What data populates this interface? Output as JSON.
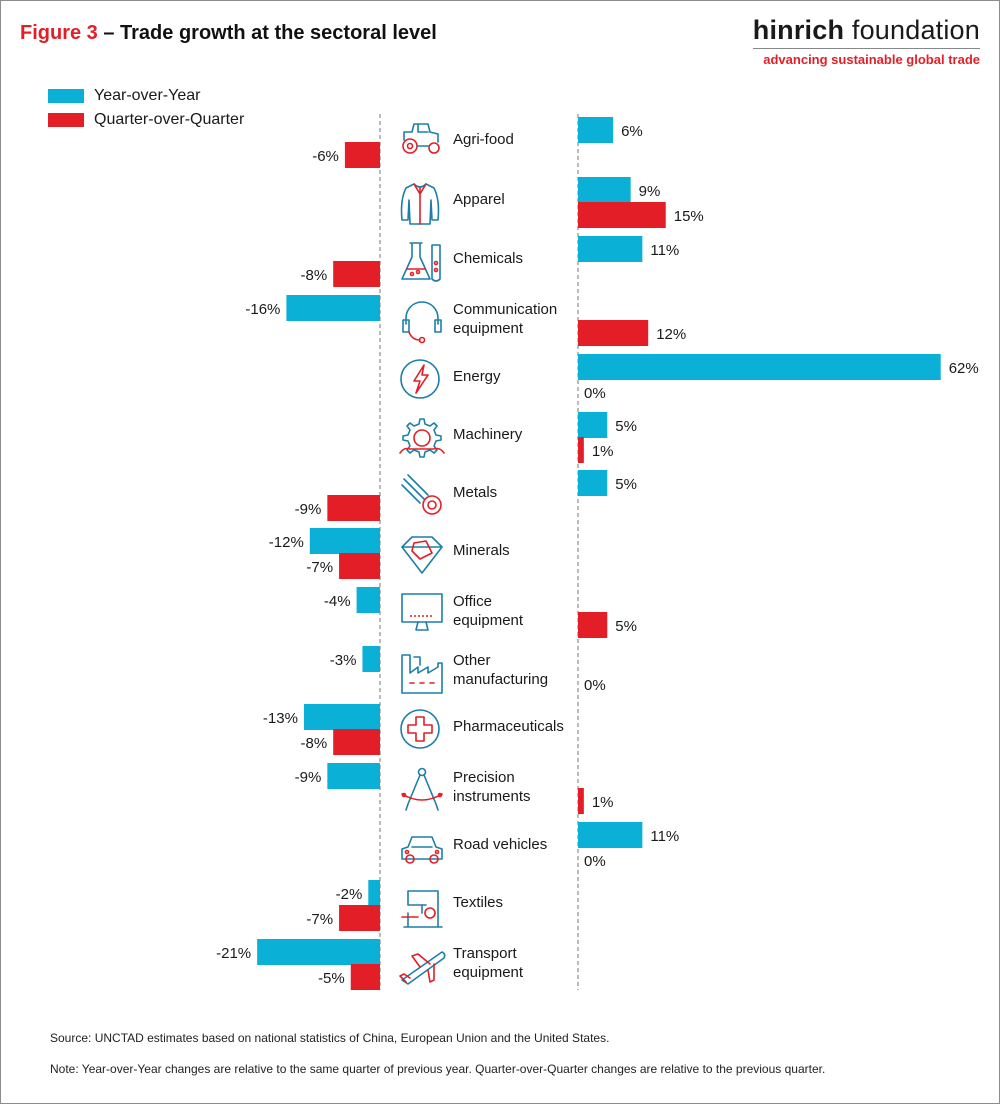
{
  "header": {
    "figure_label": "Figure 3",
    "title_text": "– Trade growth at the sectoral level",
    "brand_name_bold": "hinrich",
    "brand_name_rest": " foundation",
    "brand_tagline": "advancing sustainable global trade"
  },
  "colors": {
    "yoy": "#0bb0d6",
    "qoq": "#e31e26",
    "icon": "#e31e26",
    "icon_secondary": "#1d7fa8"
  },
  "chart_data": {
    "type": "bar",
    "orientation": "horizontal",
    "series": [
      {
        "name": "Year-over-Year",
        "values": [
          6,
          9,
          11,
          -16,
          62,
          5,
          5,
          -12,
          -4,
          -3,
          -13,
          -9,
          11,
          -2,
          -21
        ]
      },
      {
        "name": "Quarter-over-Quarter",
        "values": [
          -6,
          15,
          -8,
          12,
          0,
          1,
          -9,
          -7,
          5,
          0,
          -8,
          1,
          0,
          -7,
          -5
        ]
      }
    ],
    "categories": [
      {
        "label": "Agri-food",
        "icon": "tractor-icon"
      },
      {
        "label": "Apparel",
        "icon": "jacket-icon"
      },
      {
        "label": "Chemicals",
        "icon": "flask-icon"
      },
      {
        "label": "Communication equipment",
        "icon": "headset-icon"
      },
      {
        "label": "Energy",
        "icon": "lightning-icon"
      },
      {
        "label": "Machinery",
        "icon": "gear-wrench-icon"
      },
      {
        "label": "Metals",
        "icon": "metal-pipes-icon"
      },
      {
        "label": "Minerals",
        "icon": "gem-icon"
      },
      {
        "label": "Office equipment",
        "icon": "monitor-icon"
      },
      {
        "label": "Other manufacturing",
        "icon": "factory-icon"
      },
      {
        "label": "Pharmaceuticals",
        "icon": "medical-cross-icon"
      },
      {
        "label": "Precision instruments",
        "icon": "compass-icon"
      },
      {
        "label": "Road vehicles",
        "icon": "car-icon"
      },
      {
        "label": "Textiles",
        "icon": "sewing-machine-icon"
      },
      {
        "label": "Transport equipment",
        "icon": "airplane-icon"
      }
    ],
    "value_suffix": "%",
    "legend_position": "top-left",
    "grid": false
  },
  "footer": {
    "source": "Source: UNCTAD estimates based on national statistics of China, European Union and the United States.",
    "note": "Note: Year-over-Year changes are relative to the same quarter of previous year. Quarter-over-Quarter changes are relative to the previous quarter."
  }
}
